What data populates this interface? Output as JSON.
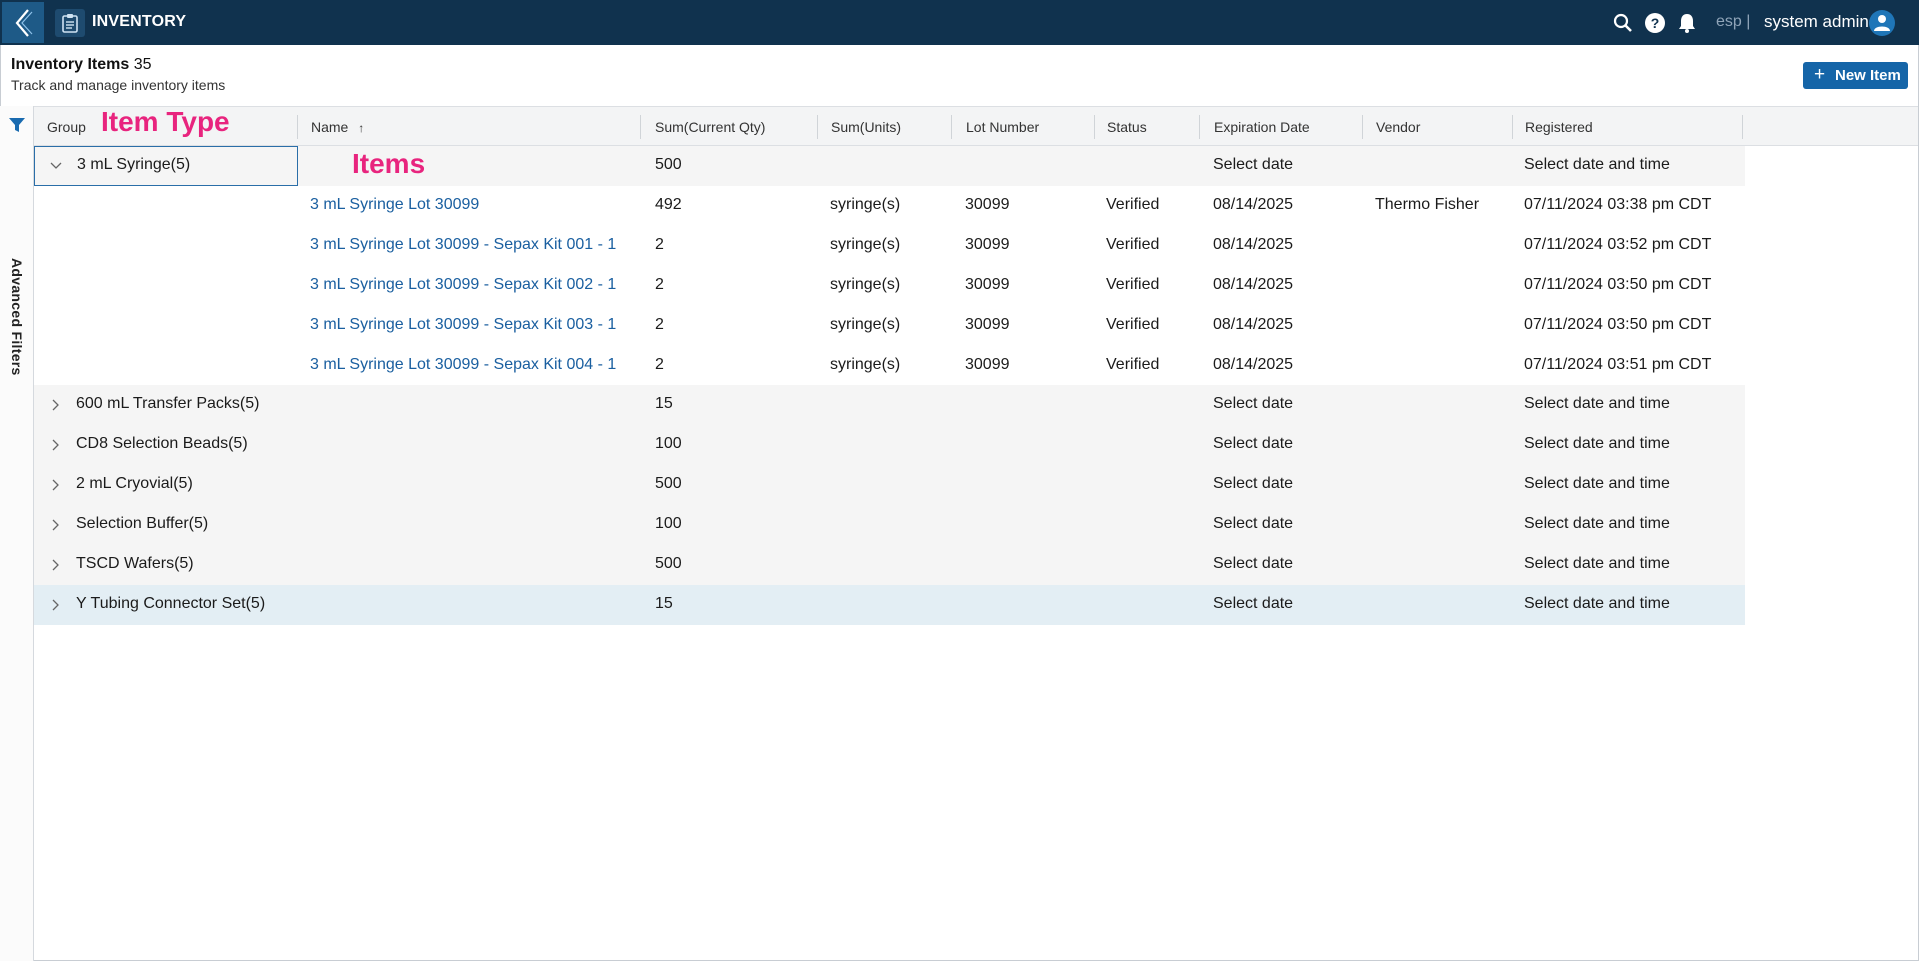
{
  "app": {
    "title": "INVENTORY"
  },
  "topbar": {
    "lang": "esp |",
    "user": "system admin",
    "icons": [
      "search-icon",
      "help-icon",
      "bell-icon",
      "user-avatar-icon"
    ]
  },
  "header": {
    "title": "Inventory Items",
    "count": "35",
    "subtitle": "Track and manage inventory items",
    "new_button": "New Item"
  },
  "rail": {
    "label": "Advanced Filters"
  },
  "annotations": {
    "item_type": "Item Type",
    "items": "Items"
  },
  "columns": {
    "group": "Group",
    "name": "Name",
    "sum_qty": "Sum(Current Qty)",
    "sum_units": "Sum(Units)",
    "lot": "Lot Number",
    "status": "Status",
    "expiration": "Expiration Date",
    "vendor": "Vendor",
    "registered": "Registered"
  },
  "expanded_group": {
    "name": "3 mL Syringe",
    "count": "(5)",
    "qty": "500",
    "expiration": "Select date",
    "registered": "Select date and time"
  },
  "items": [
    {
      "name": "3 mL Syringe Lot 30099",
      "qty": "492",
      "units": "syringe(s)",
      "lot": "30099",
      "status": "Verified",
      "expiration": "08/14/2025",
      "vendor": "Thermo Fisher",
      "registered": "07/11/2024 03:38 pm CDT"
    },
    {
      "name": "3 mL Syringe Lot 30099 - Sepax Kit 001 - 1",
      "qty": "2",
      "units": "syringe(s)",
      "lot": "30099",
      "status": "Verified",
      "expiration": "08/14/2025",
      "vendor": "",
      "registered": "07/11/2024 03:52 pm CDT"
    },
    {
      "name": "3 mL Syringe Lot 30099 - Sepax Kit 002 - 1",
      "qty": "2",
      "units": "syringe(s)",
      "lot": "30099",
      "status": "Verified",
      "expiration": "08/14/2025",
      "vendor": "",
      "registered": "07/11/2024 03:50 pm CDT"
    },
    {
      "name": "3 mL Syringe Lot 30099 - Sepax Kit 003 - 1",
      "qty": "2",
      "units": "syringe(s)",
      "lot": "30099",
      "status": "Verified",
      "expiration": "08/14/2025",
      "vendor": "",
      "registered": "07/11/2024 03:50 pm CDT"
    },
    {
      "name": "3 mL Syringe Lot 30099 - Sepax Kit 004 - 1",
      "qty": "2",
      "units": "syringe(s)",
      "lot": "30099",
      "status": "Verified",
      "expiration": "08/14/2025",
      "vendor": "",
      "registered": "07/11/2024 03:51 pm CDT"
    }
  ],
  "groups": [
    {
      "name": "600 mL Transfer Packs",
      "count": "(5)",
      "qty": "15",
      "expiration": "Select date",
      "registered": "Select date and time"
    },
    {
      "name": "CD8 Selection Beads",
      "count": "(5)",
      "qty": "100",
      "expiration": "Select date",
      "registered": "Select date and time"
    },
    {
      "name": "2 mL Cryovial",
      "count": "(5)",
      "qty": "500",
      "expiration": "Select date",
      "registered": "Select date and time"
    },
    {
      "name": "Selection Buffer",
      "count": "(5)",
      "qty": "100",
      "expiration": "Select date",
      "registered": "Select date and time"
    },
    {
      "name": "TSCD Wafers",
      "count": "(5)",
      "qty": "500",
      "expiration": "Select date",
      "registered": "Select date and time"
    },
    {
      "name": "Y Tubing Connector Set",
      "count": "(5)",
      "qty": "15",
      "expiration": "Select date",
      "registered": "Select date and time"
    }
  ],
  "colors": {
    "topbar": "#10324e",
    "accent": "#1565a8",
    "link": "#1a5fa0",
    "annotation": "#e8247e",
    "row_highlight": "#e3eef4"
  }
}
